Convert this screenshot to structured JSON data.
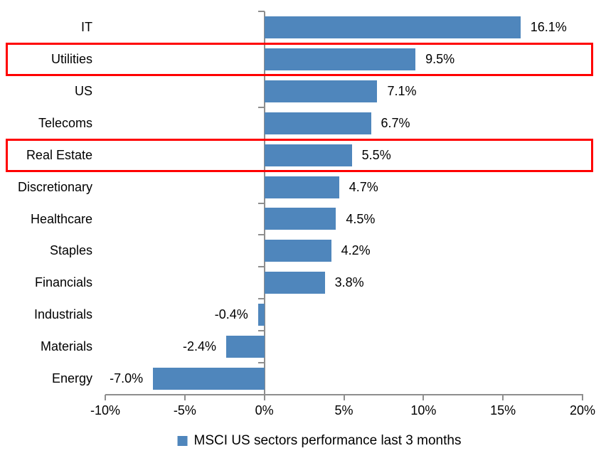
{
  "chart_data": {
    "type": "bar",
    "orientation": "horizontal",
    "title": "",
    "xlabel": "",
    "ylabel": "",
    "categories": [
      "IT",
      "Utilities",
      "US",
      "Telecoms",
      "Real Estate",
      "Discretionary",
      "Healthcare",
      "Staples",
      "Financials",
      "Industrials",
      "Materials",
      "Energy"
    ],
    "values": [
      16.1,
      9.5,
      7.1,
      6.7,
      5.5,
      4.7,
      4.5,
      4.2,
      3.8,
      -0.4,
      -2.4,
      -7.0
    ],
    "value_labels": [
      "16.1%",
      "9.5%",
      "7.1%",
      "6.7%",
      "5.5%",
      "4.7%",
      "4.5%",
      "4.2%",
      "3.8%",
      "-0.4%",
      "-2.4%",
      "-7.0%"
    ],
    "highlighted_categories": [
      "Utilities",
      "Real Estate"
    ],
    "x_tick_labels": [
      "-10%",
      "-5%",
      "0%",
      "5%",
      "10%",
      "15%",
      "20%"
    ],
    "xlim": [
      -10,
      20
    ],
    "grid": false,
    "legend_position": "bottom-center",
    "legend": [
      {
        "label": "MSCI US sectors performance last 3 months",
        "color": "#4F86BC"
      }
    ],
    "colors": {
      "bar": "#4F86BC",
      "highlight_box": "#FF0000",
      "axis": "#8E8E8E",
      "text": "#000000"
    }
  }
}
